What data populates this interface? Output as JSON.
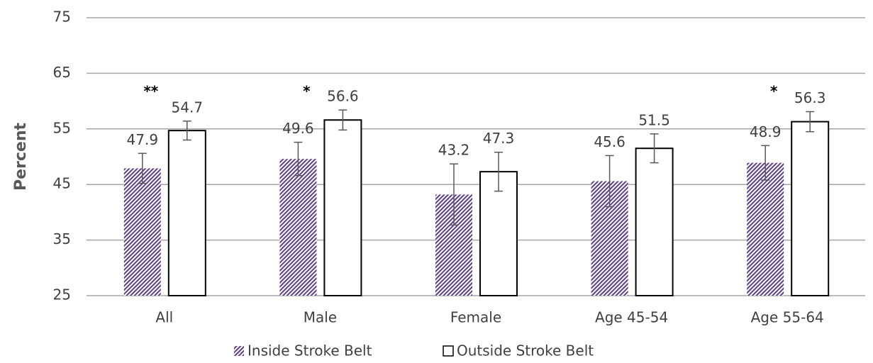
{
  "chart_data": {
    "type": "bar",
    "y_label": "Percent",
    "categories": [
      "All",
      "Male",
      "Female",
      "Age 45-54",
      "Age 55-64"
    ],
    "series": [
      {
        "name": "Inside Stroke Belt",
        "color": "#5b3f8c",
        "values": [
          47.9,
          49.6,
          43.2,
          45.6,
          48.9
        ],
        "errors": [
          2.7,
          3.0,
          5.5,
          4.6,
          3.1
        ]
      },
      {
        "name": "Outside Stroke Belt",
        "color": "#ffffff",
        "values": [
          54.7,
          56.6,
          47.3,
          51.5,
          56.3
        ],
        "errors": [
          1.7,
          1.8,
          3.5,
          2.6,
          1.8
        ]
      }
    ],
    "annotations": [
      "**",
      "*",
      null,
      null,
      "*"
    ],
    "ylim": [
      25,
      75
    ],
    "yticks": [
      25,
      35,
      45,
      55,
      65,
      75
    ],
    "grid": true,
    "legend": "bottom"
  }
}
